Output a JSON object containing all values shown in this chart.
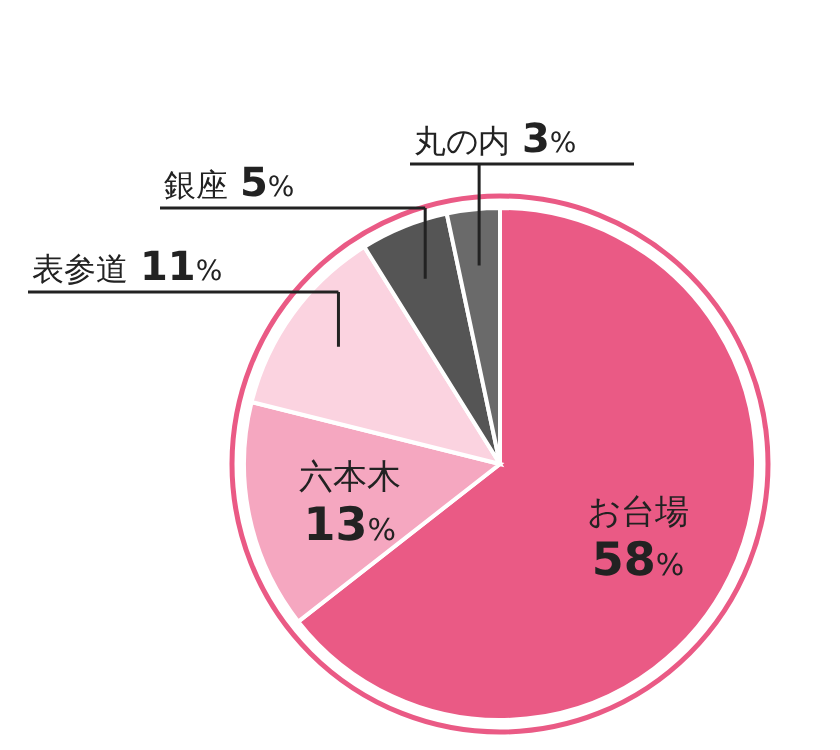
{
  "chart_data": {
    "type": "pie",
    "categories": [
      "お台場",
      "六本木",
      "表参道",
      "銀座",
      "丸の内"
    ],
    "values": [
      58,
      13,
      11,
      5,
      3
    ],
    "value_labels": [
      "58%",
      "13%",
      "11%",
      "5%",
      "3%"
    ],
    "colors": [
      "#ea5a85",
      "#f5a7c0",
      "#fbd3e0",
      "#555555",
      "#6a6a6a"
    ]
  }
}
